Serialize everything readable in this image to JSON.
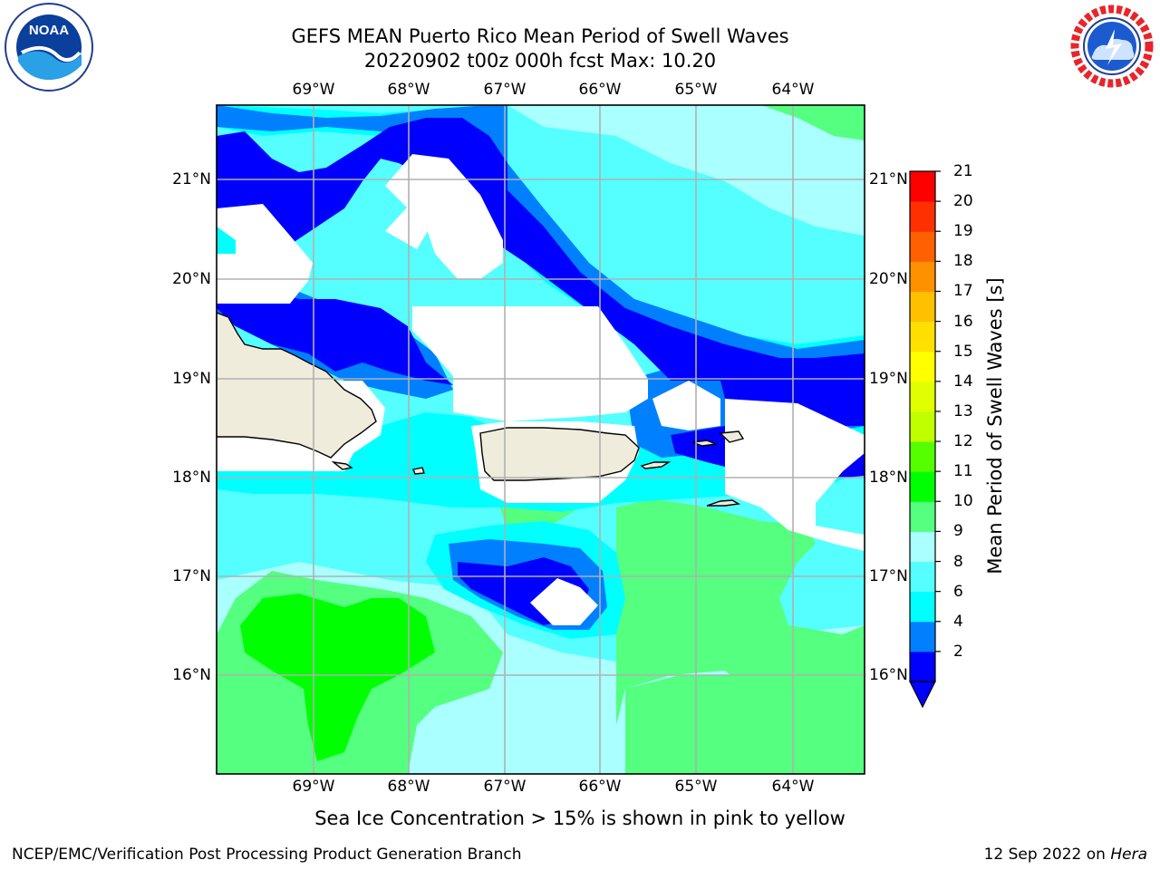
{
  "title": {
    "line1": "GEFS MEAN Puerto Rico Mean Period of Swell Waves",
    "line2": "20220902 t00z 000h fcst   Max: 10.20"
  },
  "map": {
    "lon_ticks": [
      "69°W",
      "68°W",
      "67°W",
      "66°W",
      "65°W",
      "64°W"
    ],
    "lat_ticks": [
      "21°N",
      "20°N",
      "19°N",
      "18°N",
      "17°N",
      "16°N"
    ],
    "lon_range": [
      -70.0,
      -63.3
    ],
    "lat_range": [
      15.0,
      21.75
    ],
    "land_color": "#efecdc",
    "grid": true
  },
  "colorbar": {
    "title": "Mean Period of Swell Waves [s]",
    "ticks": [
      "21",
      "20",
      "19",
      "18",
      "17",
      "16",
      "15",
      "14",
      "13",
      "12",
      "11",
      "10",
      "9",
      "8",
      "6",
      "4",
      "2"
    ],
    "colors": [
      "#0000ff",
      "#0080ff",
      "#00ffff",
      "#55ffff",
      "#aaffff",
      "#55ff80",
      "#00ff00",
      "#55ff00",
      "#c0ff00",
      "#e0ff00",
      "#ffff00",
      "#ffe000",
      "#ffc000",
      "#ff9000",
      "#ff6000",
      "#ff3000",
      "#ff0000"
    ],
    "extend": "min"
  },
  "notes": {
    "sea_ice": "Sea Ice Concentration > 15% is shown in pink to yellow"
  },
  "footer": {
    "left": "NCEP/EMC/Verification Post Processing Product Generation Branch",
    "right_date": "12 Sep 2022 on",
    "right_system": "Hera"
  },
  "logos": {
    "noaa": "NOAA",
    "nws": "NATIONAL WEATHER SERVICE"
  }
}
